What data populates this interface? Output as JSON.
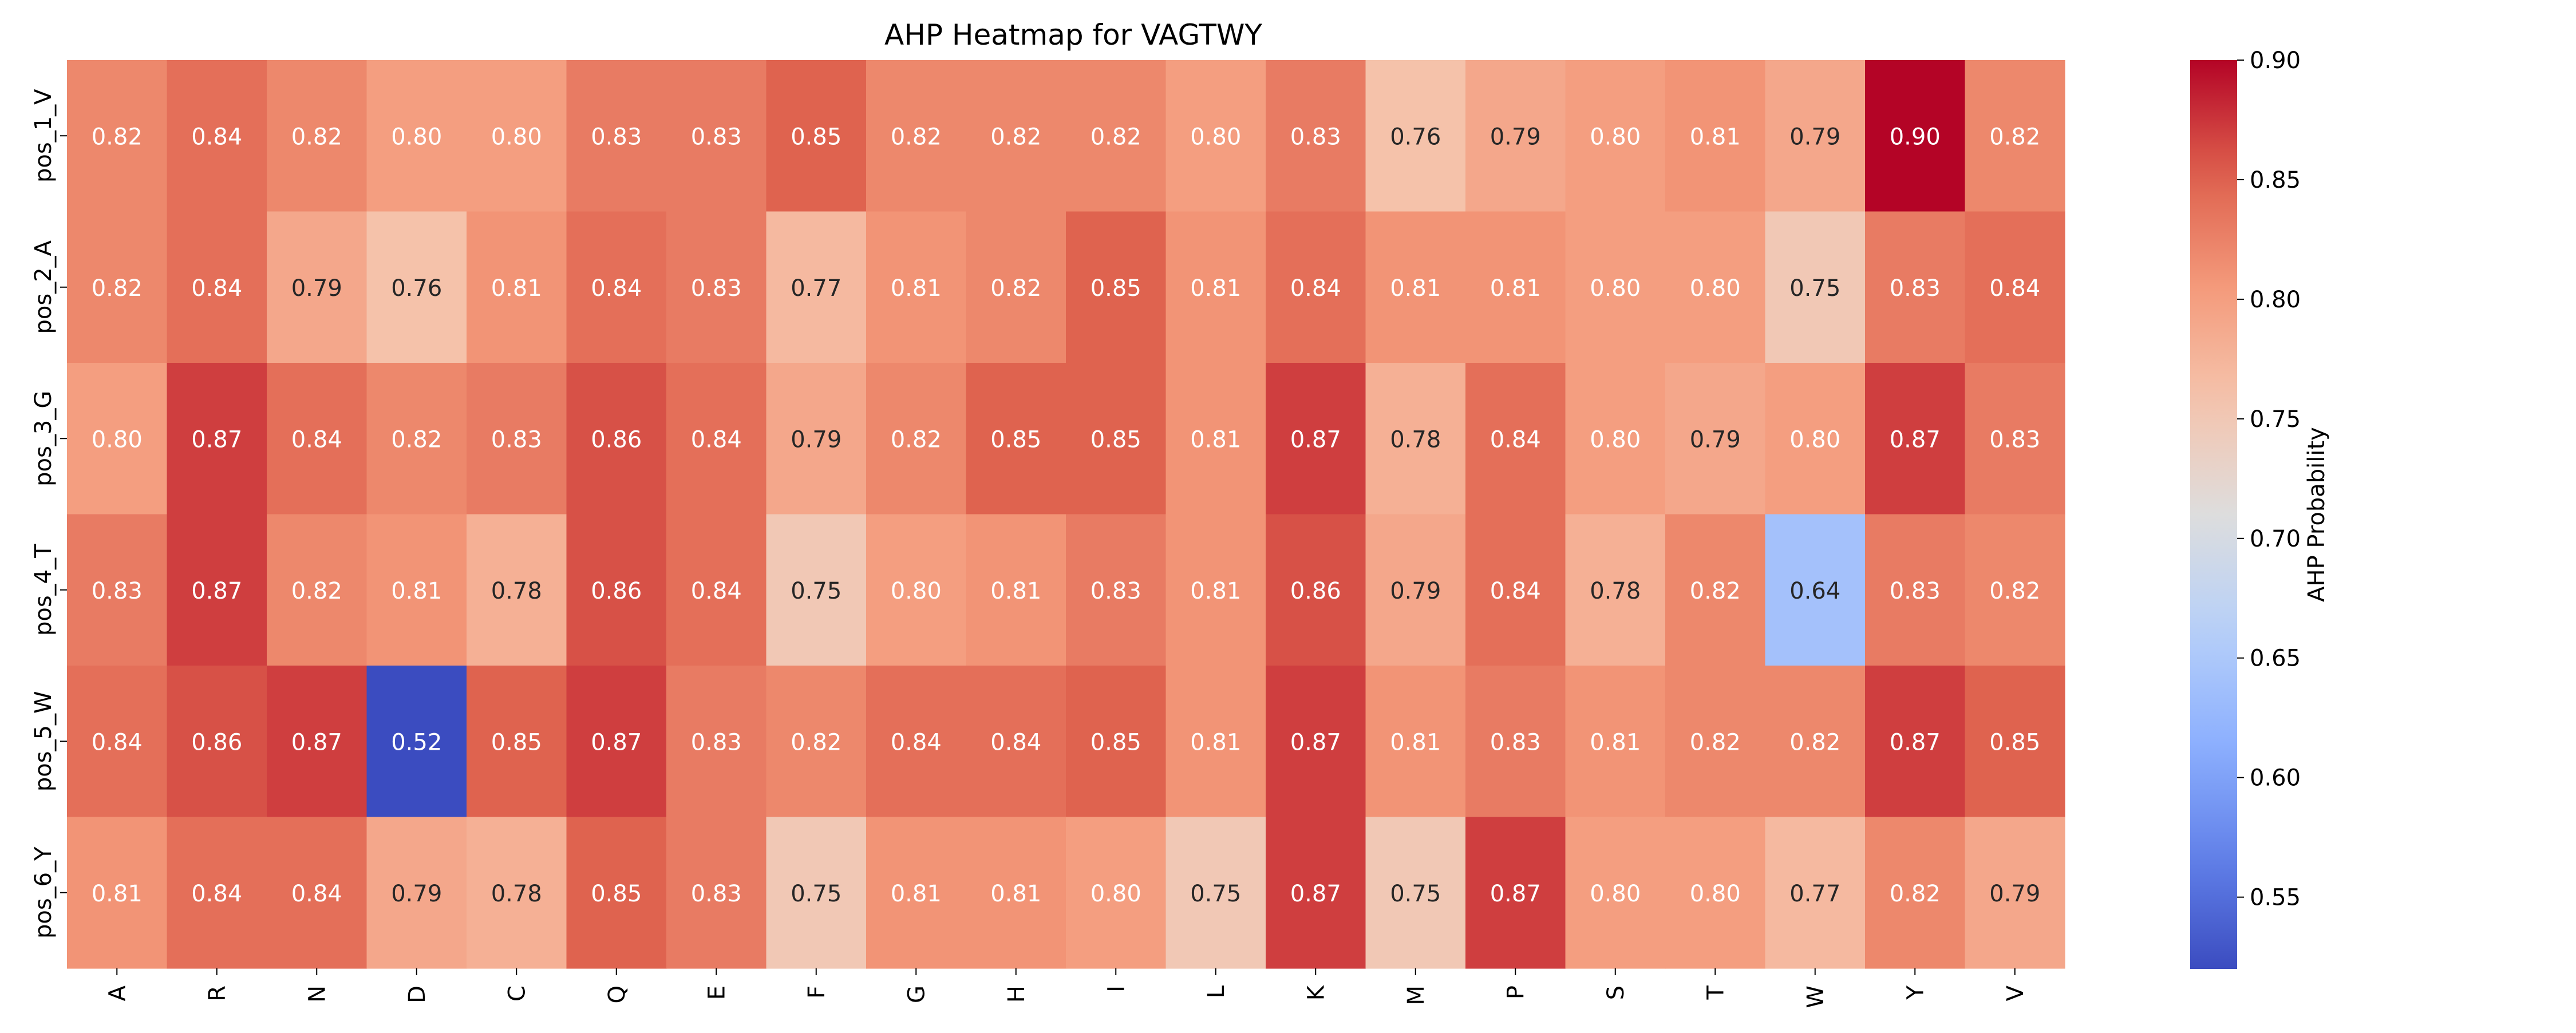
{
  "chart_data": {
    "type": "heatmap",
    "title": "AHP Heatmap for VAGTWY",
    "xlabel": "",
    "ylabel": "",
    "colorbar_label": "AHP Probability",
    "colormap": "coolwarm",
    "value_range": [
      0.52,
      0.9
    ],
    "colorbar_ticks": [
      "0.55",
      "0.60",
      "0.65",
      "0.70",
      "0.75",
      "0.80",
      "0.85",
      "0.90"
    ],
    "x_categories": [
      "A",
      "R",
      "N",
      "D",
      "C",
      "Q",
      "E",
      "F",
      "G",
      "H",
      "I",
      "L",
      "K",
      "M",
      "P",
      "S",
      "T",
      "W",
      "Y",
      "V"
    ],
    "y_categories": [
      "pos_1_V",
      "pos_2_A",
      "pos_3_G",
      "pos_4_T",
      "pos_5_W",
      "pos_6_Y"
    ],
    "values": [
      [
        0.82,
        0.84,
        0.82,
        0.8,
        0.8,
        0.83,
        0.83,
        0.85,
        0.82,
        0.82,
        0.82,
        0.8,
        0.83,
        0.76,
        0.79,
        0.8,
        0.81,
        0.79,
        0.9,
        0.82
      ],
      [
        0.82,
        0.84,
        0.79,
        0.76,
        0.81,
        0.84,
        0.83,
        0.77,
        0.81,
        0.82,
        0.85,
        0.81,
        0.84,
        0.81,
        0.81,
        0.8,
        0.8,
        0.75,
        0.83,
        0.84
      ],
      [
        0.8,
        0.87,
        0.84,
        0.82,
        0.83,
        0.86,
        0.84,
        0.79,
        0.82,
        0.85,
        0.85,
        0.81,
        0.87,
        0.78,
        0.84,
        0.8,
        0.79,
        0.8,
        0.87,
        0.83
      ],
      [
        0.83,
        0.87,
        0.82,
        0.81,
        0.78,
        0.86,
        0.84,
        0.75,
        0.8,
        0.81,
        0.83,
        0.81,
        0.86,
        0.79,
        0.84,
        0.78,
        0.82,
        0.64,
        0.83,
        0.82
      ],
      [
        0.84,
        0.86,
        0.87,
        0.52,
        0.85,
        0.87,
        0.83,
        0.82,
        0.84,
        0.84,
        0.85,
        0.81,
        0.87,
        0.81,
        0.83,
        0.81,
        0.82,
        0.82,
        0.87,
        0.85
      ],
      [
        0.81,
        0.84,
        0.84,
        0.79,
        0.78,
        0.85,
        0.83,
        0.75,
        0.81,
        0.81,
        0.8,
        0.75,
        0.87,
        0.75,
        0.87,
        0.8,
        0.8,
        0.77,
        0.82,
        0.79
      ]
    ]
  }
}
